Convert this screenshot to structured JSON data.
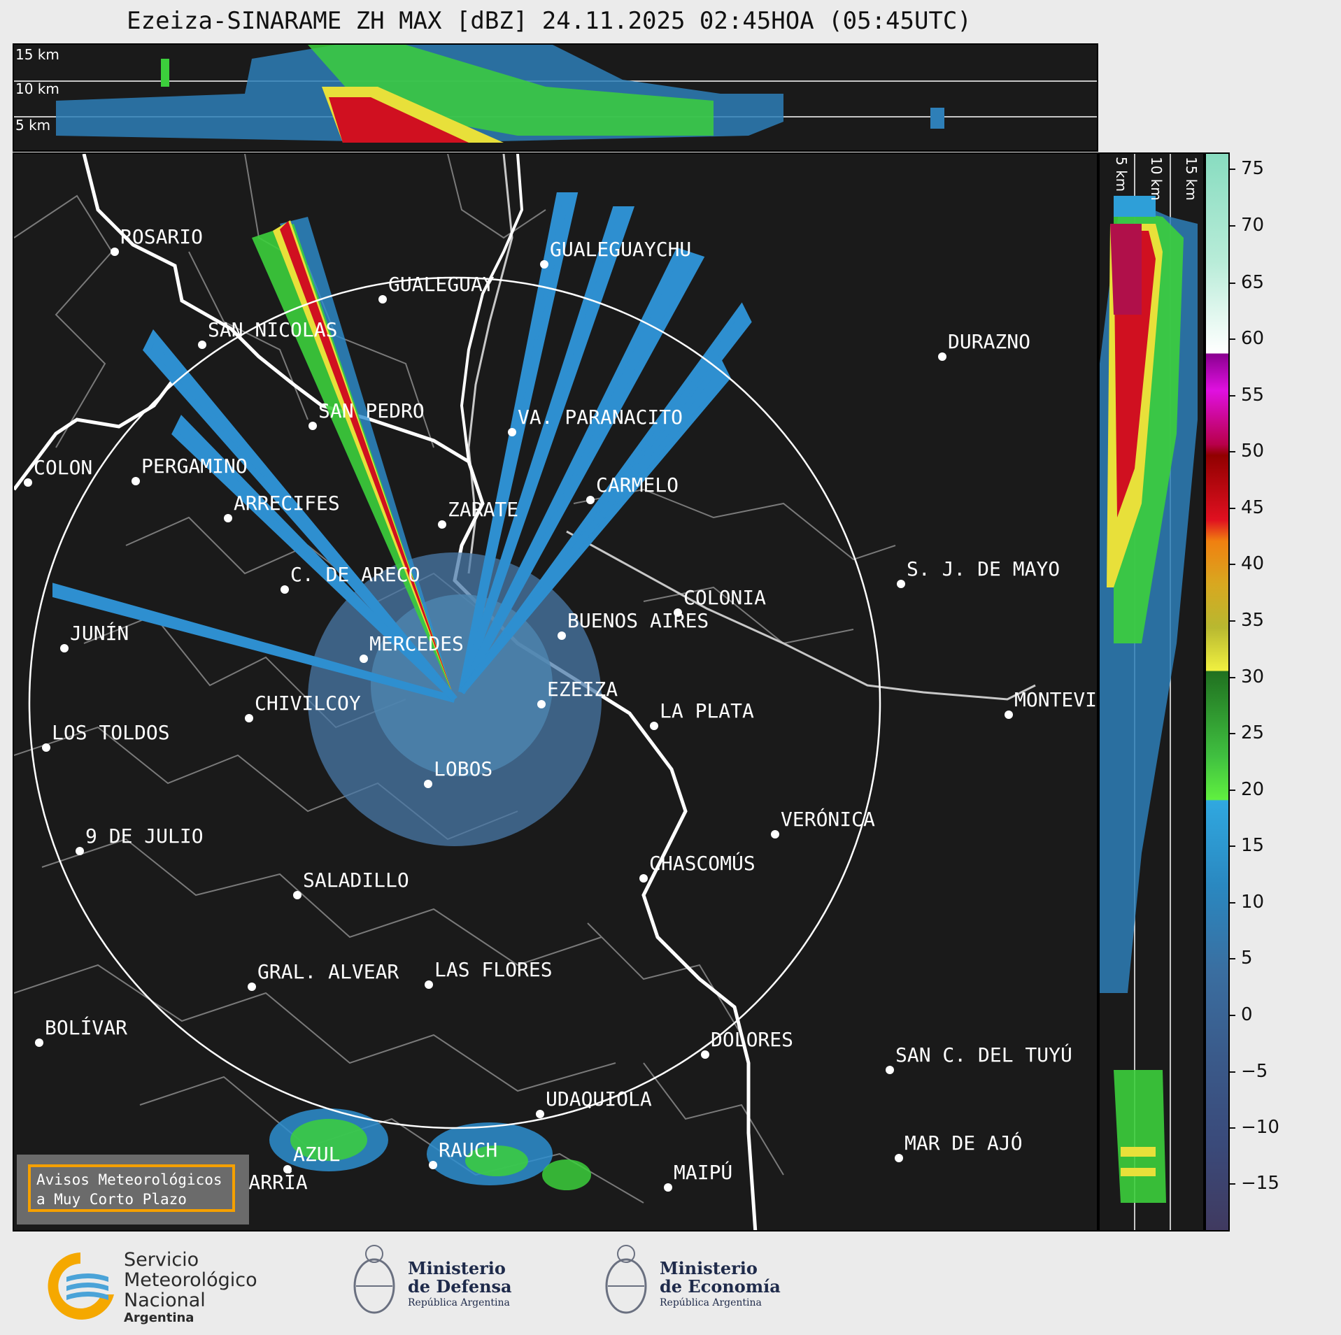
{
  "title": "Ezeiza-SINARAME ZH MAX [dBZ] 24.11.2025 02:45HOA (05:45UTC)",
  "height_labels": [
    "15 km",
    "10 km",
    "5 km"
  ],
  "colorbar": {
    "ticks": [
      "75",
      "70",
      "65",
      "60",
      "55",
      "50",
      "45",
      "40",
      "35",
      "30",
      "25",
      "20",
      "15",
      "10",
      "5",
      "0",
      "−5",
      "−10",
      "−15"
    ]
  },
  "cities": [
    {
      "name": "ROSARIO"
    },
    {
      "name": "GUALEGUAYCHU"
    },
    {
      "name": "GUALEGUAY"
    },
    {
      "name": "SAN NICOLAS"
    },
    {
      "name": "DURAZNO"
    },
    {
      "name": "SAN PEDRO"
    },
    {
      "name": "VA. PARANACITO"
    },
    {
      "name": "COLON"
    },
    {
      "name": "PERGAMINO"
    },
    {
      "name": "CARMELO"
    },
    {
      "name": "ARRECIFES"
    },
    {
      "name": "ZARATE"
    },
    {
      "name": "S. J. DE MAYO"
    },
    {
      "name": "C. DE ARECO"
    },
    {
      "name": "COLONIA"
    },
    {
      "name": "BUENOS AIRES"
    },
    {
      "name": "JUNÍN"
    },
    {
      "name": "MERCEDES"
    },
    {
      "name": "EZEIZA"
    },
    {
      "name": "MONTEVIDEO"
    },
    {
      "name": "CHIVILCOY"
    },
    {
      "name": "LA PLATA"
    },
    {
      "name": "LOS TOLDOS"
    },
    {
      "name": "LOBOS"
    },
    {
      "name": "VERÓNICA"
    },
    {
      "name": "9 DE JULIO"
    },
    {
      "name": "CHASCOMÚS"
    },
    {
      "name": "SALADILLO"
    },
    {
      "name": "GRAL. ALVEAR"
    },
    {
      "name": "LAS FLORES"
    },
    {
      "name": "BOLÍVAR"
    },
    {
      "name": "DOLORES"
    },
    {
      "name": "SAN C. DEL TUYÚ"
    },
    {
      "name": "UDAQUIOLA"
    },
    {
      "name": "MAR DE AJÓ"
    },
    {
      "name": "RAUCH"
    },
    {
      "name": "AZUL"
    },
    {
      "name": "OLAVARRÍA"
    },
    {
      "name": "MAIPÚ"
    }
  ],
  "warning_box": {
    "line1": "Avisos Meteorológicos",
    "line2": "a Muy Corto Plazo"
  },
  "footer": {
    "smn": {
      "l1": "Servicio",
      "l2": "Meteorológico",
      "l3": "Nacional",
      "l4": "Argentina"
    },
    "defensa": {
      "l1": "Ministerio",
      "l2": "de Defensa",
      "l3": "República Argentina"
    },
    "economia": {
      "l1": "Ministerio",
      "l2": "de Economía",
      "l3": "República Argentina"
    }
  },
  "colors": {
    "background_map": "#1a1a1a",
    "range_ring": "#ffffff",
    "coast": "#ffffff",
    "borders": "#888888",
    "warning_border": "#f5a000"
  }
}
